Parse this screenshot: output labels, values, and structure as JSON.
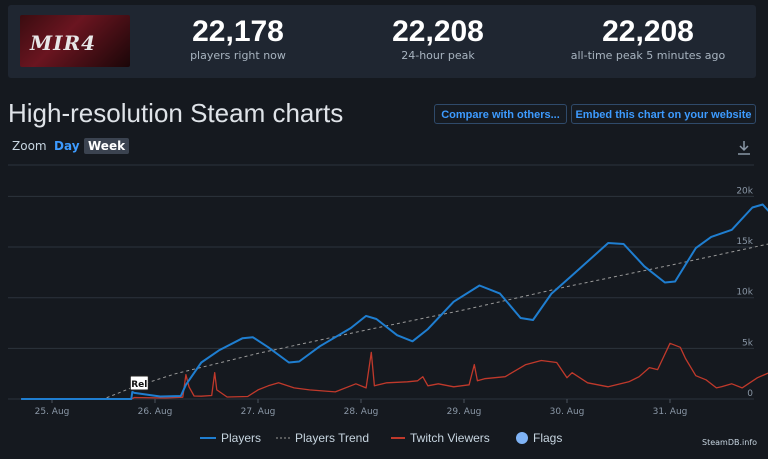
{
  "header": {
    "game_logo_text": "MIR4",
    "stats": [
      {
        "value": "22,178",
        "label": "players right now"
      },
      {
        "value": "22,208",
        "label": "24-hour peak"
      },
      {
        "value": "22,208",
        "label": "all-time peak 5 minutes ago"
      }
    ]
  },
  "section": {
    "title": "High-resolution Steam charts",
    "compare_label": "Compare with others...",
    "embed_label": "Embed this chart on your website"
  },
  "zoom": {
    "label": "Zoom",
    "options": [
      "Day",
      "Week"
    ],
    "selected": "Week"
  },
  "legend": {
    "players": "Players",
    "trend": "Players Trend",
    "twitch": "Twitch Viewers",
    "flags": "Flags"
  },
  "credit": "SteamDB.info",
  "colors": {
    "players": "#1f7ed0",
    "trend": "#9a9a9a",
    "twitch": "#c0392b",
    "flag": "#7fb3f5",
    "accent": "#3d9bff"
  },
  "chart_data": {
    "type": "line",
    "x_ticks": [
      "25. Aug",
      "26. Aug",
      "27. Aug",
      "28. Aug",
      "29. Aug",
      "30. Aug",
      "31. Aug"
    ],
    "y_ticks": [
      "0",
      "5k",
      "10k",
      "15k",
      "20k"
    ],
    "ylim": [
      0,
      23000
    ],
    "x_unit": "days since 25 Aug 00:00 (UTC)",
    "flag": {
      "label": "Rel",
      "x": 0.77
    },
    "series": [
      {
        "name": "Players",
        "points": [
          [
            -0.3,
            0
          ],
          [
            0.77,
            0
          ],
          [
            0.78,
            700
          ],
          [
            0.8,
            600
          ],
          [
            1.05,
            250
          ],
          [
            1.25,
            300
          ],
          [
            1.3,
            1400
          ],
          [
            1.45,
            3600
          ],
          [
            1.62,
            4800
          ],
          [
            1.85,
            6000
          ],
          [
            1.95,
            6100
          ],
          [
            2.1,
            5100
          ],
          [
            2.3,
            3600
          ],
          [
            2.4,
            3700
          ],
          [
            2.6,
            5200
          ],
          [
            2.9,
            7000
          ],
          [
            3.05,
            8200
          ],
          [
            3.15,
            7900
          ],
          [
            3.35,
            6300
          ],
          [
            3.5,
            5700
          ],
          [
            3.65,
            6900
          ],
          [
            3.9,
            9600
          ],
          [
            4.15,
            11200
          ],
          [
            4.35,
            10400
          ],
          [
            4.55,
            8000
          ],
          [
            4.67,
            7800
          ],
          [
            4.85,
            10400
          ],
          [
            5.05,
            12200
          ],
          [
            5.4,
            15400
          ],
          [
            5.55,
            15300
          ],
          [
            5.75,
            13100
          ],
          [
            5.95,
            11500
          ],
          [
            6.05,
            11600
          ],
          [
            6.25,
            14900
          ],
          [
            6.4,
            16000
          ],
          [
            6.6,
            16700
          ],
          [
            6.8,
            18900
          ],
          [
            6.9,
            19200
          ],
          [
            7.05,
            17500
          ],
          [
            7.25,
            15800
          ],
          [
            7.4,
            15900
          ],
          [
            7.55,
            17200
          ],
          [
            7.75,
            18600
          ],
          [
            8.0,
            19100
          ],
          [
            8.1,
            18900
          ],
          [
            8.2,
            19800
          ],
          [
            8.35,
            21600
          ],
          [
            8.45,
            22200
          ]
        ]
      },
      {
        "name": "Players Trend",
        "points": [
          [
            0.3,
            0
          ],
          [
            0.5,
            0
          ],
          [
            0.77,
            1100
          ],
          [
            1.2,
            2500
          ],
          [
            2.0,
            4500
          ],
          [
            3.0,
            6700
          ],
          [
            4.0,
            8800
          ],
          [
            5.0,
            11100
          ],
          [
            6.0,
            13200
          ],
          [
            7.0,
            15400
          ],
          [
            8.0,
            17400
          ],
          [
            8.45,
            18300
          ]
        ]
      },
      {
        "name": "Twitch Viewers",
        "points": [
          [
            -0.3,
            0
          ],
          [
            0.77,
            0
          ],
          [
            0.8,
            150
          ],
          [
            1.1,
            100
          ],
          [
            1.27,
            180
          ],
          [
            1.3,
            2400
          ],
          [
            1.33,
            1200
          ],
          [
            1.38,
            300
          ],
          [
            1.45,
            280
          ],
          [
            1.55,
            350
          ],
          [
            1.58,
            2600
          ],
          [
            1.6,
            900
          ],
          [
            1.7,
            200
          ],
          [
            1.9,
            250
          ],
          [
            2.0,
            900
          ],
          [
            2.1,
            1300
          ],
          [
            2.2,
            1600
          ],
          [
            2.35,
            1100
          ],
          [
            2.5,
            900
          ],
          [
            2.75,
            700
          ],
          [
            2.95,
            1500
          ],
          [
            3.05,
            1100
          ],
          [
            3.1,
            4600
          ],
          [
            3.13,
            1300
          ],
          [
            3.25,
            1600
          ],
          [
            3.45,
            1700
          ],
          [
            3.55,
            1800
          ],
          [
            3.6,
            2200
          ],
          [
            3.65,
            1300
          ],
          [
            3.75,
            1500
          ],
          [
            3.9,
            1200
          ],
          [
            4.05,
            1400
          ],
          [
            4.1,
            3400
          ],
          [
            4.13,
            1800
          ],
          [
            4.2,
            2000
          ],
          [
            4.4,
            2200
          ],
          [
            4.6,
            3400
          ],
          [
            4.75,
            3800
          ],
          [
            4.9,
            3600
          ],
          [
            5.0,
            2100
          ],
          [
            5.05,
            2600
          ],
          [
            5.2,
            1600
          ],
          [
            5.4,
            1200
          ],
          [
            5.6,
            1700
          ],
          [
            5.7,
            2200
          ],
          [
            5.8,
            3100
          ],
          [
            5.88,
            2900
          ],
          [
            6.0,
            5500
          ],
          [
            6.1,
            5100
          ],
          [
            6.15,
            4000
          ],
          [
            6.25,
            2300
          ],
          [
            6.35,
            1900
          ],
          [
            6.45,
            1100
          ],
          [
            6.5,
            1200
          ],
          [
            6.6,
            1500
          ],
          [
            6.7,
            1100
          ],
          [
            6.85,
            2100
          ],
          [
            7.1,
            3200
          ],
          [
            7.25,
            3500
          ],
          [
            7.4,
            3000
          ],
          [
            7.5,
            3900
          ],
          [
            7.6,
            3300
          ],
          [
            7.7,
            2700
          ],
          [
            7.85,
            1200
          ],
          [
            8.0,
            400
          ],
          [
            8.1,
            200
          ],
          [
            8.25,
            900
          ],
          [
            8.45,
            1200
          ]
        ]
      }
    ],
    "grid": true
  }
}
